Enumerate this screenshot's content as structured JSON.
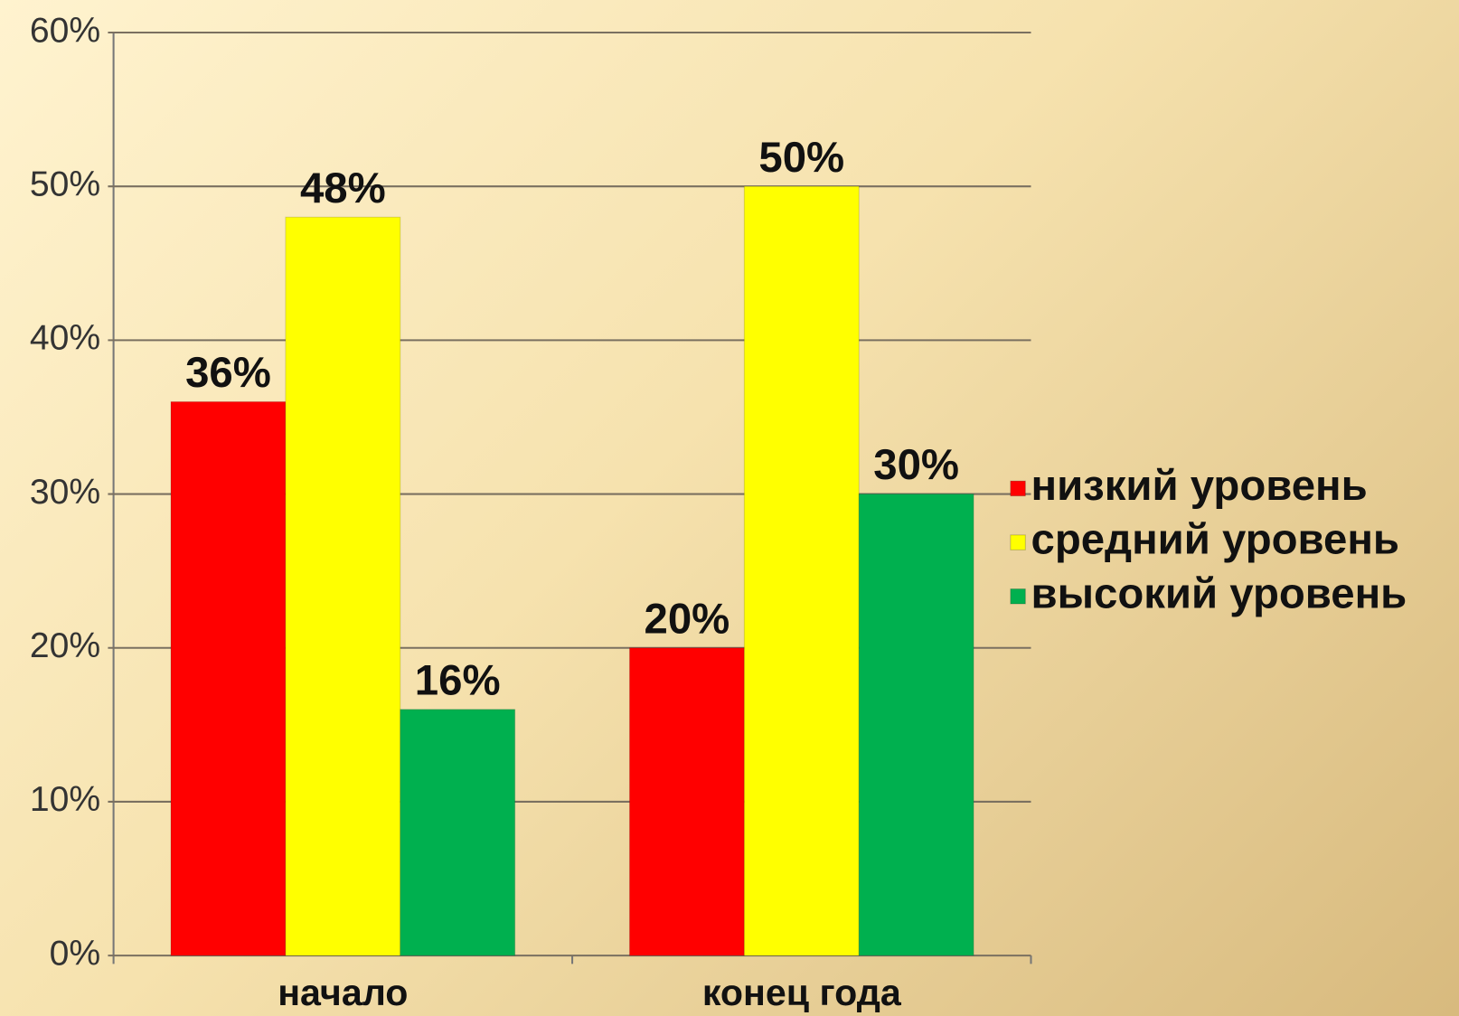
{
  "chart_data": {
    "type": "bar",
    "categories": [
      "начало",
      "конец года"
    ],
    "series": [
      {
        "name": "низкий уровень",
        "color": "#ff0000",
        "values": [
          36,
          20
        ],
        "value_labels": [
          "36%",
          "20%"
        ]
      },
      {
        "name": "средний уровень",
        "color": "#ffff00",
        "values": [
          48,
          50
        ],
        "value_labels": [
          "48%",
          "50%"
        ]
      },
      {
        "name": "высокий уровень",
        "color": "#00b04f",
        "values": [
          16,
          30
        ],
        "value_labels": [
          "16%",
          "30%"
        ]
      }
    ],
    "ylim": [
      0,
      60
    ],
    "yticks": [
      {
        "value": 0,
        "label": "0%"
      },
      {
        "value": 10,
        "label": "10%"
      },
      {
        "value": 20,
        "label": "20%"
      },
      {
        "value": 30,
        "label": "30%"
      },
      {
        "value": 40,
        "label": "40%"
      },
      {
        "value": 50,
        "label": "50%"
      },
      {
        "value": 60,
        "label": "60%"
      }
    ],
    "grid": true,
    "legend": "right"
  }
}
